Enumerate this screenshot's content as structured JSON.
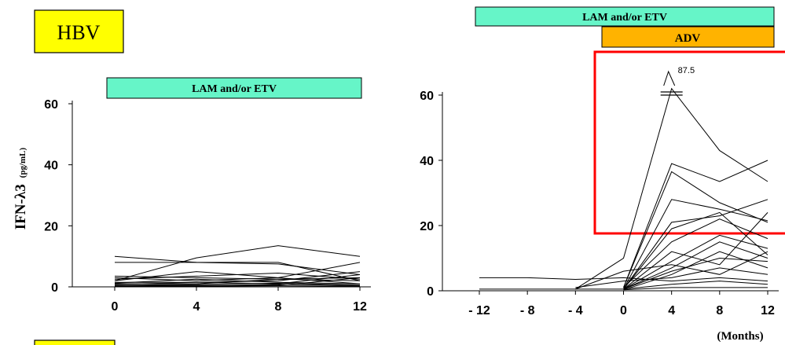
{
  "labels": {
    "hbv": "HBV",
    "left_bar": "LAM and/or ETV",
    "right_bar_top": "LAM and/or ETV",
    "right_bar_adv": "ADV",
    "ylabel_main": "IFN-λ3",
    "ylabel_unit": "(pg/mL)",
    "months": "(Months)",
    "peak_value": "87.5"
  },
  "colors": {
    "badge": "#ffff00",
    "teal_bar": "#66f5c8",
    "adv_bar": "#ffb300",
    "highlight_box": "#ff0000",
    "line": "#000000"
  },
  "chart_data": [
    {
      "type": "line",
      "x": [
        0,
        4,
        8,
        12
      ],
      "xticks": [
        "0",
        "4",
        "8",
        "12"
      ],
      "yticks": [
        "0",
        "20",
        "40",
        "60"
      ],
      "ylim": [
        0,
        60
      ],
      "series": [
        {
          "values": [
            10,
            8,
            7.5,
            4
          ]
        },
        {
          "values": [
            8,
            8,
            8,
            2
          ]
        },
        {
          "values": [
            2,
            9.5,
            13.5,
            10
          ]
        },
        {
          "values": [
            3.5,
            3,
            2.5,
            3
          ]
        },
        {
          "values": [
            3,
            2,
            3,
            8
          ]
        },
        {
          "values": [
            2.5,
            3.5,
            4.5,
            2.5
          ]
        },
        {
          "values": [
            2,
            5,
            3,
            1
          ]
        },
        {
          "values": [
            1.5,
            1.5,
            2,
            5
          ]
        },
        {
          "values": [
            1.2,
            2.5,
            1.5,
            1
          ]
        },
        {
          "values": [
            1,
            1,
            2.5,
            2
          ]
        },
        {
          "values": [
            0.8,
            1.5,
            1,
            4
          ]
        },
        {
          "values": [
            0.5,
            0.8,
            1.2,
            0.6
          ]
        },
        {
          "values": [
            0.3,
            0.5,
            0.5,
            3
          ]
        },
        {
          "values": [
            0.2,
            0.3,
            0.8,
            0.4
          ]
        },
        {
          "values": [
            0.1,
            0.2,
            0.3,
            0.2
          ]
        }
      ]
    },
    {
      "type": "line",
      "x": [
        -12,
        -8,
        -4,
        0,
        4,
        8,
        12
      ],
      "xticks": [
        "- 12",
        "- 8",
        "- 4",
        "0",
        "4",
        "8",
        "12"
      ],
      "yticks": [
        "0",
        "20",
        "40",
        "60"
      ],
      "ylim": [
        0,
        60
      ],
      "annotation": {
        "x": 4,
        "value": 87.5
      },
      "series": [
        {
          "values": [
            4,
            4,
            3.5,
            4,
            3,
            4,
            3
          ]
        },
        {
          "values": [
            0.5,
            0.5,
            0.5,
            10,
            62,
            43,
            33.5
          ]
        },
        {
          "values": [
            null,
            null,
            null,
            1,
            39,
            33.5,
            40
          ]
        },
        {
          "values": [
            null,
            null,
            null,
            1,
            36.5,
            27,
            21
          ]
        },
        {
          "values": [
            null,
            null,
            null,
            0.5,
            28,
            25,
            21.5
          ]
        },
        {
          "values": [
            null,
            null,
            null,
            0.5,
            21,
            23,
            28
          ]
        },
        {
          "values": [
            null,
            null,
            null,
            0.5,
            19,
            24,
            11
          ]
        },
        {
          "values": [
            null,
            null,
            null,
            1,
            15,
            22,
            16
          ]
        },
        {
          "values": [
            null,
            null,
            null,
            0.5,
            12,
            8,
            24
          ]
        },
        {
          "values": [
            null,
            null,
            null,
            0.5,
            9,
            17,
            13
          ]
        },
        {
          "values": [
            null,
            null,
            null,
            0.5,
            7,
            15,
            10
          ]
        },
        {
          "values": [
            null,
            null,
            0.5,
            6,
            8,
            5,
            12
          ]
        },
        {
          "values": [
            null,
            null,
            null,
            0.3,
            5,
            12,
            7
          ]
        },
        {
          "values": [
            null,
            null,
            1,
            3,
            4,
            7,
            5
          ]
        },
        {
          "values": [
            null,
            null,
            null,
            0.5,
            2,
            3,
            2
          ]
        },
        {
          "values": [
            null,
            null,
            null,
            0.3,
            1,
            1,
            1
          ]
        },
        {
          "values": [
            null,
            null,
            0.5,
            0.5,
            6,
            10,
            9
          ]
        }
      ]
    }
  ]
}
